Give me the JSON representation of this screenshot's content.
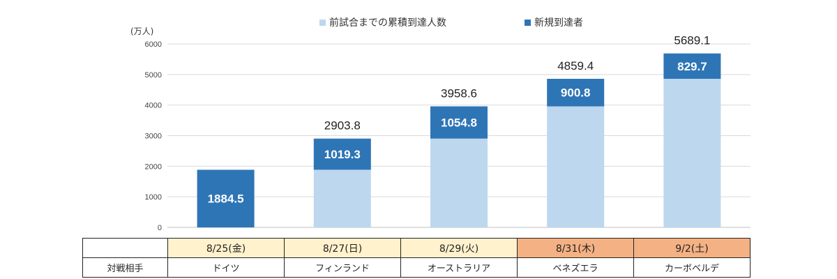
{
  "colors": {
    "cumulative": "#bdd7ee",
    "new": "#2e75b6",
    "weekday_bg": "#fff2cc",
    "weekend_bg": "#f4b183",
    "grid": "#d9d9d9"
  },
  "legend": {
    "cumulative": "前試合までの累積到達人数",
    "new": "新規到達者"
  },
  "table": {
    "row_header": "対戦相手",
    "columns": [
      {
        "date": "8/25(金)",
        "opponent": "ドイツ",
        "highlight": "weekday"
      },
      {
        "date": "8/27(日)",
        "opponent": "フィンランド",
        "highlight": "weekday"
      },
      {
        "date": "8/29(火)",
        "opponent": "オーストラリア",
        "highlight": "weekday"
      },
      {
        "date": "8/31(木)",
        "opponent": "ベネズエラ",
        "highlight": "weekend"
      },
      {
        "date": "9/2(土)",
        "opponent": "カーボベルデ",
        "highlight": "weekend"
      }
    ]
  },
  "chart_data": {
    "type": "bar",
    "stacked": true,
    "unit_label": "(万人)",
    "categories": [
      "8/25(金)",
      "8/27(日)",
      "8/29(火)",
      "8/31(木)",
      "9/2(土)"
    ],
    "series": [
      {
        "name": "前試合までの累積到達人数",
        "values": [
          0,
          1884.5,
          2903.8,
          3958.6,
          4859.4
        ]
      },
      {
        "name": "新規到達者",
        "values": [
          1884.5,
          1019.3,
          1054.8,
          900.8,
          829.7
        ]
      }
    ],
    "totals": [
      "",
      "2903.8",
      "3958.6",
      "4859.4",
      "5689.1"
    ],
    "new_labels": [
      "1884.5",
      "1019.3",
      "1054.8",
      "900.8",
      "829.7"
    ],
    "yticks": [
      "0",
      "1000",
      "2000",
      "3000",
      "4000",
      "5000",
      "6000"
    ],
    "ylim": [
      0,
      6000
    ],
    "grid": true,
    "legend_position": "top-center"
  }
}
